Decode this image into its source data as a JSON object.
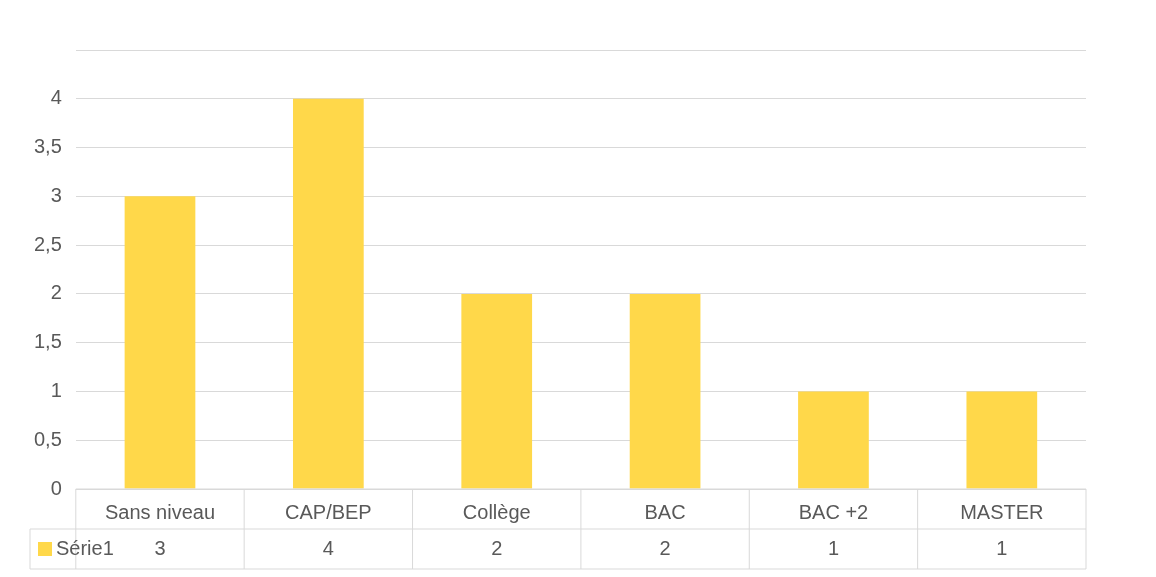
{
  "chart_data": {
    "type": "bar",
    "categories": [
      "Sans niveau",
      "CAP/BEP",
      "Collège",
      "BAC",
      "BAC +2",
      "MASTER"
    ],
    "series": [
      {
        "name": "Série1",
        "color": "#ffd84a",
        "values": [
          3,
          4,
          2,
          2,
          1,
          1
        ]
      }
    ],
    "ylim": [
      0,
      4.5
    ],
    "yticks": [
      0,
      {
        "value": 0.5,
        "label": "0,5"
      },
      1,
      {
        "value": 1.5,
        "label": "1,5"
      },
      2,
      {
        "value": 2.5,
        "label": "2,5"
      },
      3,
      {
        "value": 3.5,
        "label": "3,5"
      },
      4,
      {
        "value": 4.5,
        "label": null
      }
    ],
    "grid": "y",
    "legend": "bottom",
    "data_labels": true
  }
}
